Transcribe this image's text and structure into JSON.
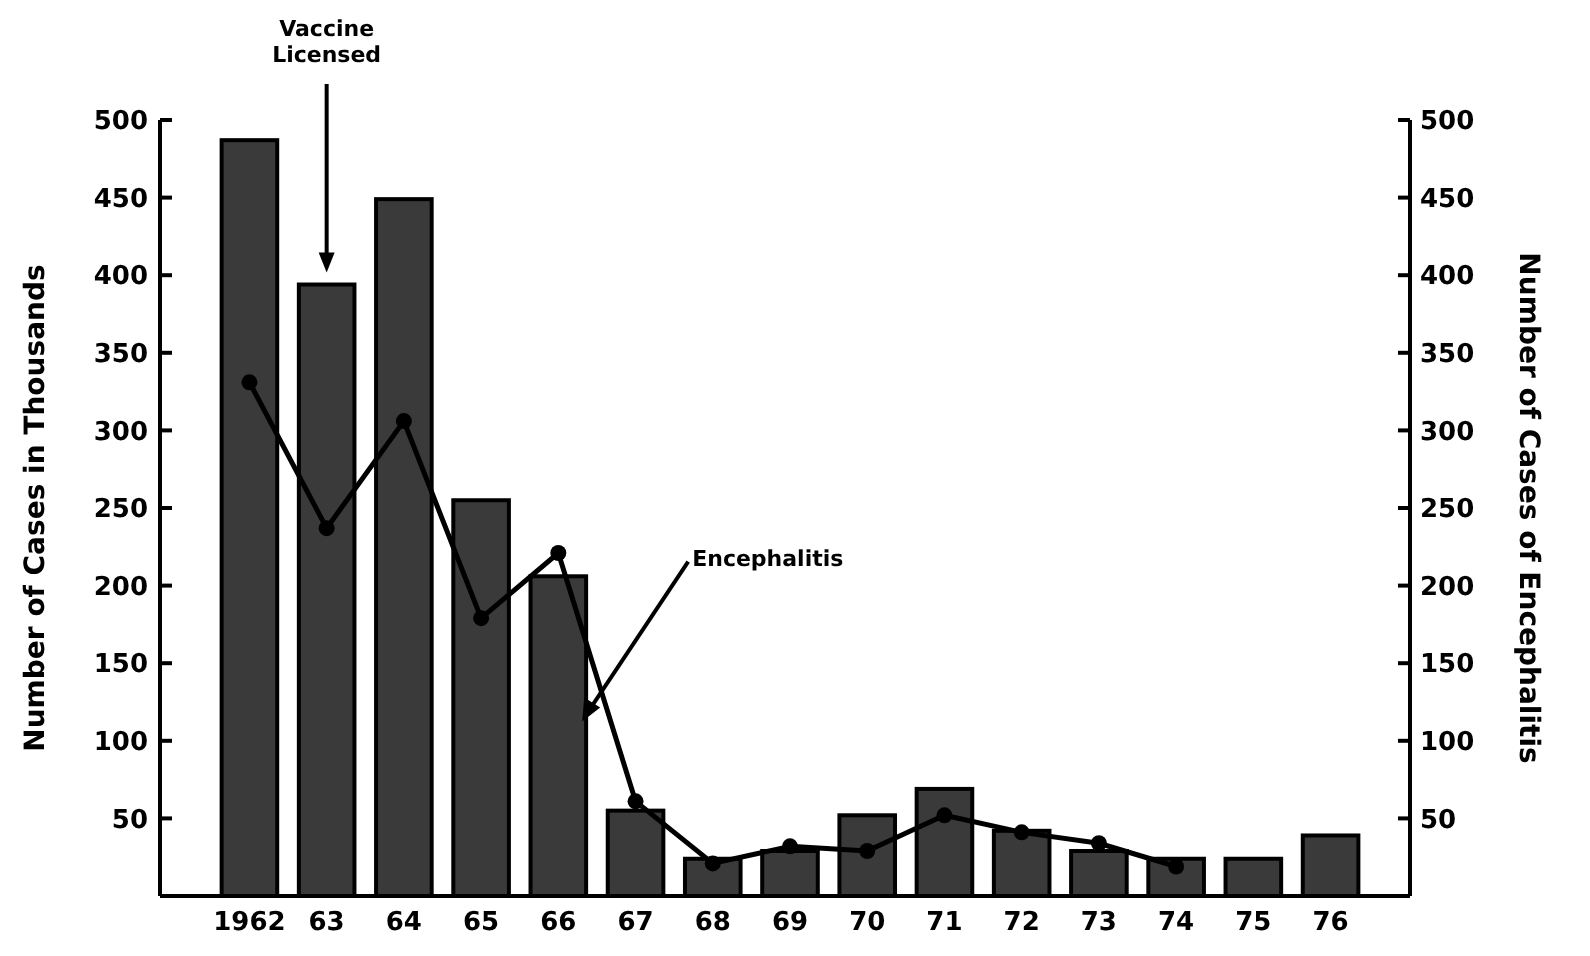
{
  "chart_data": {
    "type": "bar",
    "ylabel": "Number of Cases in Thousands",
    "y2label": "Number of Cases of Encephalitis",
    "categories": [
      "1962",
      "63",
      "64",
      "65",
      "66",
      "67",
      "68",
      "69",
      "70",
      "71",
      "72",
      "73",
      "74",
      "75",
      "76"
    ],
    "series": [
      {
        "color": "#3a3a3a",
        "values": [
          487,
          394,
          449,
          255,
          206,
          55,
          24,
          29,
          52,
          69,
          42,
          29,
          24,
          24,
          39
        ]
      },
      {
        "type": "line",
        "axis": "y2",
        "name": "Encephalitis",
        "color": "#000000",
        "marker": "circle",
        "values": [
          331,
          237,
          306,
          179,
          221,
          61,
          21,
          32,
          29,
          52,
          41,
          34,
          19,
          null,
          null
        ]
      }
    ],
    "ylim": [
      0,
      500
    ],
    "yticks": [
      50,
      100,
      150,
      200,
      250,
      300,
      350,
      400,
      450,
      500
    ],
    "y2lim": [
      0,
      500
    ],
    "y2ticks": [
      50,
      100,
      150,
      200,
      250,
      300,
      350,
      400,
      450,
      500
    ],
    "annotations": [
      "Vaccine Licensed"
    ]
  }
}
